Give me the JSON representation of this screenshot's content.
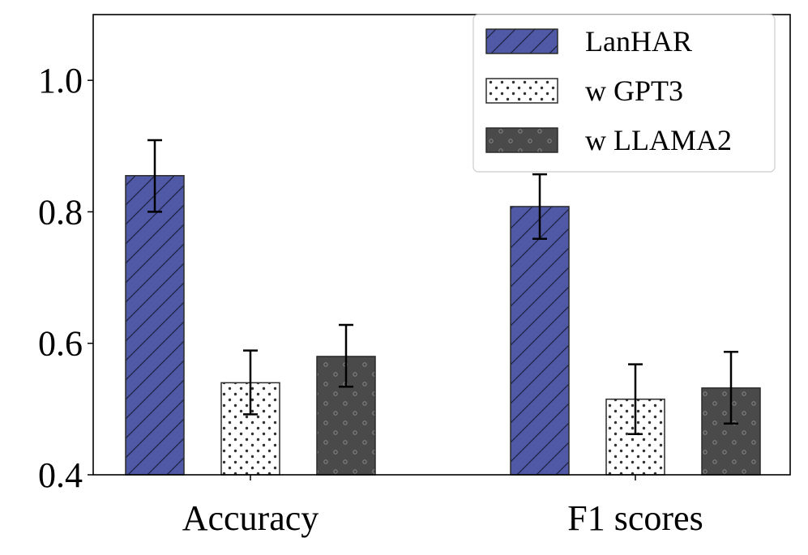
{
  "chart_data": {
    "type": "bar",
    "categories": [
      "Accuracy",
      "F1 scores"
    ],
    "series": [
      {
        "name": "LanHAR",
        "values": [
          0.855,
          0.808
        ],
        "errors": [
          [
            0.8,
            0.909
          ],
          [
            0.759,
            0.857
          ]
        ],
        "color": "#5059a6",
        "pattern": "hatch"
      },
      {
        "name": "w GPT3",
        "values": [
          0.54,
          0.515
        ],
        "errors": [
          [
            0.492,
            0.589
          ],
          [
            0.462,
            0.568
          ]
        ],
        "color": "#ffffff",
        "pattern": "dots"
      },
      {
        "name": "w LLAMA2",
        "values": [
          0.58,
          0.532
        ],
        "errors": [
          [
            0.534,
            0.628
          ],
          [
            0.478,
            0.587
          ]
        ],
        "color": "#4a4a4a",
        "pattern": "circles"
      }
    ],
    "ylim": [
      0.4,
      1.1
    ],
    "yticks": [
      0.4,
      0.6,
      0.8,
      1.0
    ],
    "ytick_labels": [
      "0.4",
      "0.6",
      "0.8",
      "1.0"
    ],
    "title": "",
    "xlabel": "",
    "ylabel": "",
    "legend_position": "top-right"
  }
}
